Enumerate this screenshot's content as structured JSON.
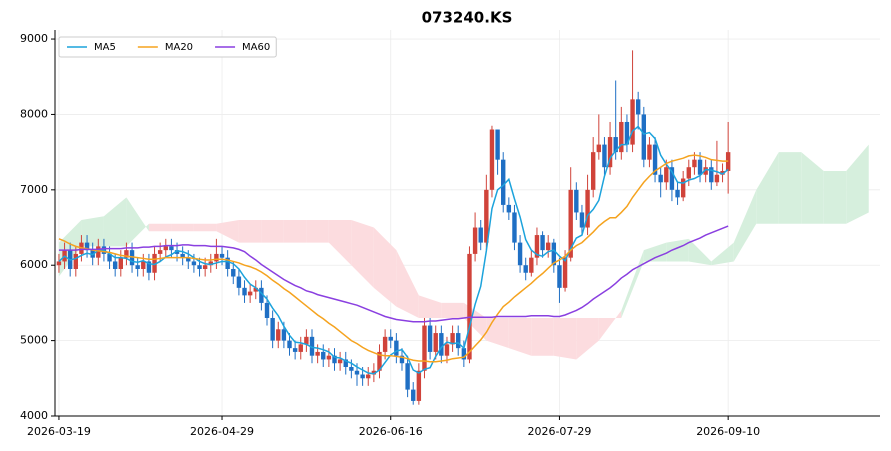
{
  "chart_data": {
    "type": "candlestick",
    "title": "073240.KS",
    "up_color": "#d0433a",
    "down_color": "#1f6fc4",
    "candles": [
      [
        6000,
        6150,
        5900,
        6050
      ],
      [
        6050,
        6300,
        5950,
        6200
      ],
      [
        6200,
        6300,
        5850,
        5950
      ],
      [
        5950,
        6250,
        5850,
        6150
      ],
      [
        6150,
        6400,
        6050,
        6300
      ],
      [
        6300,
        6400,
        6100,
        6200
      ],
      [
        6200,
        6300,
        6000,
        6100
      ],
      [
        6100,
        6350,
        6000,
        6250
      ],
      [
        6250,
        6350,
        6050,
        6150
      ],
      [
        6150,
        6250,
        5950,
        6050
      ],
      [
        6050,
        6150,
        5850,
        5950
      ],
      [
        5950,
        6200,
        5850,
        6100
      ],
      [
        6100,
        6300,
        6000,
        6200
      ],
      [
        6200,
        6300,
        5900,
        6000
      ],
      [
        6000,
        6100,
        5850,
        5950
      ],
      [
        5950,
        6150,
        5850,
        6050
      ],
      [
        6050,
        6150,
        5800,
        5900
      ],
      [
        5900,
        6250,
        5800,
        6150
      ],
      [
        6150,
        6300,
        6050,
        6200
      ],
      [
        6200,
        6350,
        6100,
        6250
      ],
      [
        6250,
        6350,
        6100,
        6200
      ],
      [
        6200,
        6300,
        6050,
        6150
      ],
      [
        6150,
        6250,
        6000,
        6100
      ],
      [
        6100,
        6200,
        5950,
        6050
      ],
      [
        6050,
        6150,
        5900,
        6000
      ],
      [
        6000,
        6100,
        5850,
        5950
      ],
      [
        5950,
        6100,
        5850,
        6000
      ],
      [
        6000,
        6150,
        5900,
        6050
      ],
      [
        6050,
        6350,
        5950,
        6150
      ],
      [
        6150,
        6250,
        6000,
        6100
      ],
      [
        6100,
        6200,
        5850,
        5950
      ],
      [
        5950,
        6050,
        5750,
        5850
      ],
      [
        5850,
        5950,
        5600,
        5700
      ],
      [
        5700,
        5800,
        5500,
        5600
      ],
      [
        5600,
        5750,
        5500,
        5650
      ],
      [
        5650,
        5800,
        5550,
        5700
      ],
      [
        5700,
        5800,
        5400,
        5500
      ],
      [
        5500,
        5600,
        5200,
        5300
      ],
      [
        5300,
        5400,
        4900,
        5000
      ],
      [
        5000,
        5250,
        4900,
        5150
      ],
      [
        5150,
        5250,
        4900,
        5000
      ],
      [
        5000,
        5100,
        4800,
        4900
      ],
      [
        4900,
        5000,
        4750,
        4850
      ],
      [
        4850,
        5050,
        4750,
        4950
      ],
      [
        4950,
        5150,
        4850,
        5050
      ],
      [
        5050,
        5150,
        4700,
        4800
      ],
      [
        4800,
        4950,
        4700,
        4850
      ],
      [
        4850,
        4950,
        4650,
        4750
      ],
      [
        4750,
        4900,
        4650,
        4800
      ],
      [
        4800,
        4900,
        4600,
        4700
      ],
      [
        4700,
        4850,
        4600,
        4750
      ],
      [
        4750,
        4850,
        4550,
        4650
      ],
      [
        4650,
        4750,
        4500,
        4600
      ],
      [
        4600,
        4700,
        4400,
        4550
      ],
      [
        4550,
        4650,
        4400,
        4500
      ],
      [
        4500,
        4650,
        4400,
        4550
      ],
      [
        4550,
        4700,
        4450,
        4600
      ],
      [
        4600,
        4950,
        4500,
        4850
      ],
      [
        4850,
        5150,
        4750,
        5050
      ],
      [
        5050,
        5150,
        4900,
        5000
      ],
      [
        5000,
        5100,
        4700,
        4800
      ],
      [
        4800,
        4900,
        4600,
        4700
      ],
      [
        4700,
        4800,
        4250,
        4350
      ],
      [
        4350,
        4450,
        4150,
        4200
      ],
      [
        4200,
        4700,
        4150,
        4600
      ],
      [
        4600,
        5300,
        4500,
        5200
      ],
      [
        5200,
        5300,
        4750,
        4850
      ],
      [
        4850,
        5200,
        4750,
        5100
      ],
      [
        5100,
        5200,
        4700,
        4800
      ],
      [
        4800,
        5050,
        4700,
        4950
      ],
      [
        4950,
        5200,
        4850,
        5100
      ],
      [
        5100,
        5200,
        4800,
        4900
      ],
      [
        4900,
        5000,
        4650,
        4750
      ],
      [
        4750,
        6250,
        4700,
        6150
      ],
      [
        6150,
        6700,
        6050,
        6500
      ],
      [
        6500,
        6600,
        6200,
        6300
      ],
      [
        6300,
        7200,
        6200,
        7000
      ],
      [
        7000,
        7850,
        6900,
        7800
      ],
      [
        7800,
        7800,
        7200,
        7400
      ],
      [
        7400,
        7500,
        6700,
        6800
      ],
      [
        6800,
        6900,
        6600,
        6700
      ],
      [
        6700,
        6800,
        6200,
        6300
      ],
      [
        6300,
        6400,
        5900,
        6000
      ],
      [
        6000,
        6100,
        5800,
        5900
      ],
      [
        5900,
        6200,
        5850,
        6100
      ],
      [
        6100,
        6500,
        6000,
        6400
      ],
      [
        6400,
        6450,
        6100,
        6200
      ],
      [
        6200,
        6400,
        6100,
        6300
      ],
      [
        6300,
        6350,
        5900,
        6000
      ],
      [
        6000,
        6100,
        5500,
        5700
      ],
      [
        5700,
        6200,
        5650,
        6100
      ],
      [
        6100,
        7300,
        6050,
        7000
      ],
      [
        7000,
        7100,
        6600,
        6700
      ],
      [
        6700,
        6800,
        6400,
        6500
      ],
      [
        6500,
        7200,
        6400,
        7000
      ],
      [
        7000,
        7700,
        6900,
        7500
      ],
      [
        7500,
        8000,
        7400,
        7600
      ],
      [
        7600,
        7700,
        7200,
        7300
      ],
      [
        7300,
        7900,
        7200,
        7700
      ],
      [
        7700,
        8450,
        7400,
        7500
      ],
      [
        7500,
        8100,
        7400,
        7900
      ],
      [
        7900,
        8000,
        7500,
        7600
      ],
      [
        7600,
        8850,
        7500,
        8200
      ],
      [
        8200,
        8300,
        7800,
        8000
      ],
      [
        8000,
        8100,
        7300,
        7400
      ],
      [
        7400,
        7700,
        7300,
        7600
      ],
      [
        7600,
        7700,
        7100,
        7200
      ],
      [
        7200,
        7300,
        6900,
        7100
      ],
      [
        7100,
        7400,
        7000,
        7300
      ],
      [
        7300,
        7400,
        6850,
        7000
      ],
      [
        7000,
        7100,
        6800,
        6900
      ],
      [
        6900,
        7250,
        6850,
        7150
      ],
      [
        7150,
        7400,
        7050,
        7300
      ],
      [
        7300,
        7500,
        7200,
        7400
      ],
      [
        7400,
        7500,
        7100,
        7200
      ],
      [
        7200,
        7400,
        7100,
        7300
      ],
      [
        7300,
        7400,
        7000,
        7100
      ],
      [
        7100,
        7650,
        7050,
        7200
      ],
      [
        7200,
        7350,
        7100,
        7250
      ],
      [
        7250,
        7900,
        6950,
        7500
      ]
    ],
    "series": [
      {
        "name": "MA5",
        "color": "#1ca3dc",
        "values": [
          6050,
          6120,
          6070,
          6090,
          6130,
          6160,
          6140,
          6200,
          6200,
          6150,
          6100,
          6100,
          6090,
          6050,
          6040,
          6060,
          6020,
          6010,
          6050,
          6110,
          6140,
          6190,
          6180,
          6150,
          6100,
          6050,
          6020,
          6010,
          6030,
          6050,
          6050,
          6020,
          5950,
          5840,
          5750,
          5700,
          5630,
          5550,
          5430,
          5330,
          5190,
          5070,
          4980,
          4970,
          4950,
          4910,
          4900,
          4880,
          4850,
          4780,
          4770,
          4730,
          4700,
          4650,
          4610,
          4570,
          4560,
          4610,
          4710,
          4810,
          4860,
          4880,
          4780,
          4610,
          4570,
          4620,
          4640,
          4790,
          4910,
          4980,
          4960,
          4970,
          4900,
          5180,
          5480,
          5720,
          6190,
          6750,
          7000,
          7060,
          7140,
          6880,
          6640,
          6340,
          6200,
          6140,
          6120,
          6180,
          6200,
          6120,
          6060,
          6220,
          6360,
          6400,
          6660,
          6740,
          6860,
          7180,
          7420,
          7520,
          7600,
          7600,
          7780,
          7840,
          7740,
          7760,
          7680,
          7460,
          7340,
          7240,
          7100,
          7090,
          7130,
          7150,
          7190,
          7270,
          7260,
          7240,
          7210,
          7270
        ]
      },
      {
        "name": "MA20",
        "color": "#f5a31f",
        "values": [
          6350,
          6320,
          6280,
          6250,
          6230,
          6220,
          6200,
          6190,
          6180,
          6170,
          6150,
          6130,
          6120,
          6110,
          6100,
          6090,
          6080,
          6080,
          6090,
          6100,
          6100,
          6100,
          6100,
          6100,
          6090,
          6080,
          6070,
          6070,
          6080,
          6080,
          6070,
          6050,
          6030,
          6000,
          5980,
          5950,
          5910,
          5860,
          5800,
          5750,
          5690,
          5640,
          5580,
          5520,
          5460,
          5400,
          5340,
          5290,
          5230,
          5180,
          5120,
          5060,
          5000,
          4960,
          4910,
          4870,
          4840,
          4810,
          4800,
          4800,
          4790,
          4780,
          4760,
          4740,
          4730,
          4730,
          4720,
          4720,
          4730,
          4740,
          4760,
          4770,
          4780,
          4850,
          4930,
          5010,
          5110,
          5240,
          5350,
          5450,
          5510,
          5580,
          5640,
          5700,
          5760,
          5830,
          5890,
          5960,
          6030,
          6070,
          6120,
          6200,
          6260,
          6300,
          6370,
          6440,
          6520,
          6580,
          6630,
          6630,
          6700,
          6780,
          6900,
          7000,
          7100,
          7180,
          7250,
          7300,
          7350,
          7380,
          7400,
          7420,
          7450,
          7460,
          7450,
          7430,
          7400,
          7390,
          7380,
          7380
        ]
      },
      {
        "name": "MA60",
        "color": "#8a3fe0",
        "values": [
          6200,
          6200,
          6200,
          6200,
          6210,
          6210,
          6210,
          6210,
          6220,
          6220,
          6220,
          6220,
          6230,
          6230,
          6230,
          6240,
          6240,
          6250,
          6250,
          6260,
          6260,
          6260,
          6270,
          6270,
          6260,
          6260,
          6260,
          6250,
          6250,
          6250,
          6240,
          6230,
          6210,
          6180,
          6120,
          6070,
          6010,
          5960,
          5910,
          5860,
          5810,
          5770,
          5730,
          5700,
          5660,
          5640,
          5610,
          5590,
          5570,
          5550,
          5530,
          5510,
          5490,
          5470,
          5440,
          5410,
          5380,
          5350,
          5320,
          5300,
          5280,
          5270,
          5260,
          5250,
          5250,
          5250,
          5260,
          5260,
          5270,
          5280,
          5290,
          5290,
          5300,
          5310,
          5310,
          5310,
          5310,
          5310,
          5320,
          5320,
          5320,
          5320,
          5320,
          5320,
          5330,
          5330,
          5330,
          5330,
          5320,
          5320,
          5340,
          5370,
          5400,
          5440,
          5490,
          5550,
          5600,
          5650,
          5700,
          5760,
          5830,
          5880,
          5940,
          5980,
          6020,
          6060,
          6100,
          6130,
          6160,
          6200,
          6230,
          6260,
          6300,
          6330,
          6360,
          6400,
          6430,
          6460,
          6490,
          6520
        ]
      }
    ],
    "ichimoku": {
      "up_color": "#d6efdd",
      "down_color": "#fcdcdf",
      "x": [
        0,
        4,
        8,
        12,
        16,
        20,
        24,
        28,
        32,
        36,
        40,
        44,
        48,
        52,
        56,
        60,
        64,
        68,
        72,
        76,
        80,
        84,
        88,
        92,
        96,
        100,
        104,
        108,
        112,
        116,
        120,
        124,
        128,
        132,
        136,
        140,
        144
      ],
      "span_a": [
        6300,
        6600,
        6650,
        6900,
        6450,
        6450,
        6450,
        6450,
        6300,
        6300,
        6300,
        6300,
        6300,
        6000,
        5700,
        5450,
        5300,
        5300,
        5300,
        5000,
        4900,
        4800,
        4800,
        4750,
        5000,
        5400,
        6200,
        6300,
        6350,
        6050,
        6300,
        7000,
        7500,
        7500,
        7250,
        7250,
        7600
      ],
      "span_b": [
        5850,
        6250,
        6250,
        6250,
        6550,
        6550,
        6550,
        6550,
        6600,
        6600,
        6600,
        6600,
        6600,
        6600,
        6500,
        6200,
        5600,
        5500,
        5500,
        5300,
        5300,
        5300,
        5300,
        5300,
        5300,
        5300,
        6050,
        6050,
        6050,
        6000,
        6050,
        6550,
        6550,
        6550,
        6550,
        6550,
        6700
      ]
    },
    "xlim": [
      -0.7,
      146
    ],
    "ylim": [
      4000,
      9120
    ],
    "xticks": [
      {
        "value": 0,
        "label": "2026-03-19"
      },
      {
        "value": 29,
        "label": "2026-04-29"
      },
      {
        "value": 59,
        "label": "2026-06-16"
      },
      {
        "value": 89,
        "label": "2026-07-29"
      },
      {
        "value": 119,
        "label": "2026-09-10"
      }
    ],
    "yticks": [
      4000,
      5000,
      6000,
      7000,
      8000,
      9000
    ],
    "grid": true,
    "legend": "upper left"
  }
}
